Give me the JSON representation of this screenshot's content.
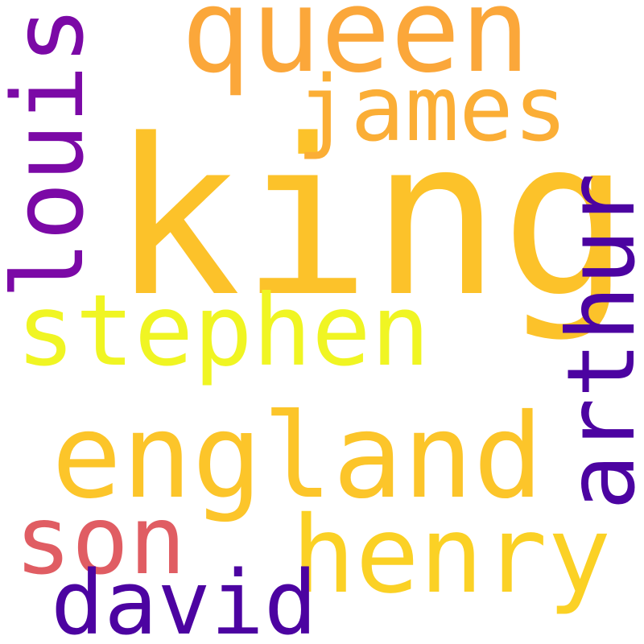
{
  "cloud": {
    "words": {
      "king": {
        "text": "king",
        "color": "#FCC22A"
      },
      "england": {
        "text": "england",
        "color": "#FCC52A"
      },
      "queen": {
        "text": "queen",
        "color": "#FBA73A"
      },
      "henry": {
        "text": "henry",
        "color": "#FBD125"
      },
      "stephen": {
        "text": "stephen",
        "color": "#F0F523"
      },
      "james": {
        "text": "james",
        "color": "#FBAE36"
      },
      "son": {
        "text": "son",
        "color": "#E05D63"
      },
      "arthur": {
        "text": "arthur",
        "color": "#4C03A1"
      },
      "louis": {
        "text": "louis",
        "color": "#7B09A6"
      },
      "david": {
        "text": "david",
        "color": "#4C03A1"
      }
    }
  }
}
